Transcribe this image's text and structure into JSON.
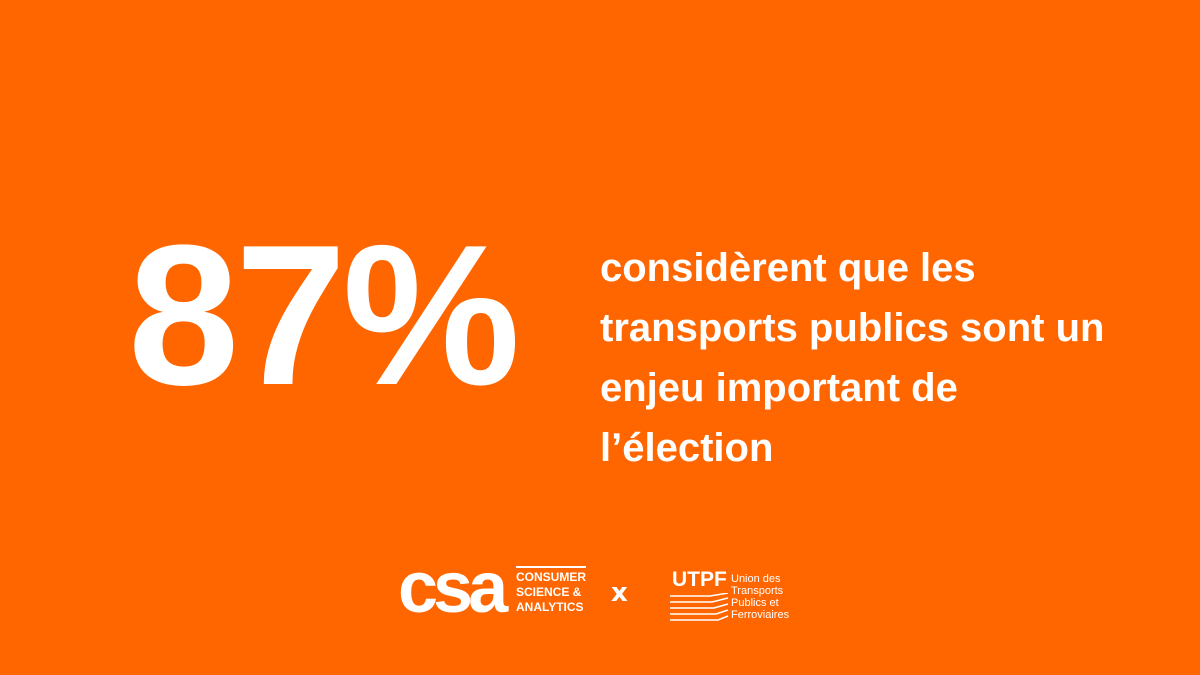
{
  "stat": {
    "value": "87%",
    "lines": [
      "considèrent que les",
      "transports publics sont un",
      "enjeu important de",
      "l’élection"
    ]
  },
  "footer": {
    "csa": {
      "logo": "csa",
      "lines": [
        "CONSUMER",
        "SCIENCE &",
        "ANALYTICS"
      ]
    },
    "separator": "x",
    "utpf": {
      "logo": "UTPF",
      "lines": [
        "Union des",
        "Transports",
        "Publics et",
        "Ferroviaires"
      ]
    }
  }
}
